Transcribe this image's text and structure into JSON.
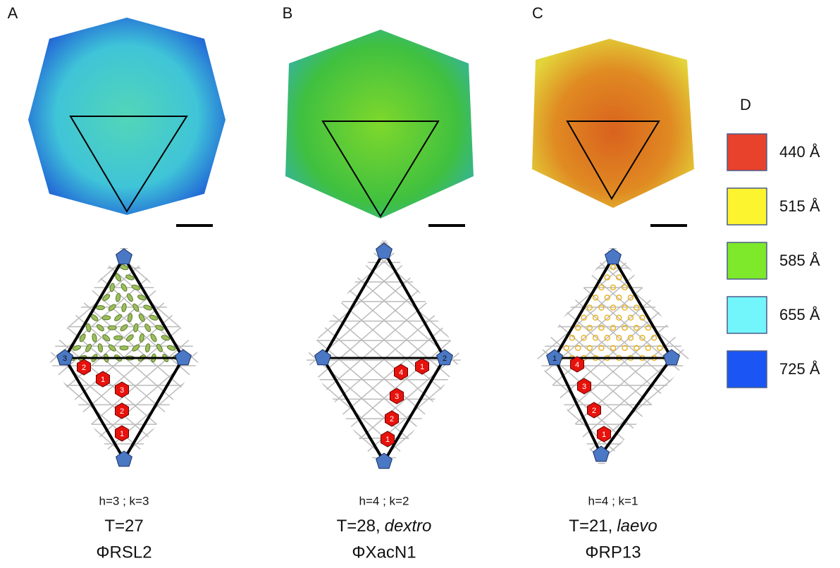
{
  "panels": [
    {
      "label": "A",
      "hk": "h=3 ; k=3",
      "t": "T=27",
      "handedness": null,
      "name": "ΦRSL2",
      "pentagon_label": "3",
      "hex_labels": [
        "2",
        "1",
        "3",
        "2",
        "1"
      ]
    },
    {
      "label": "B",
      "hk": "h=4 ; k=2",
      "t": "T=28,",
      "handedness": "dextro",
      "name": "ΦXacN1",
      "pentagon_label": "2",
      "hex_labels": [
        "1",
        "4",
        "3",
        "2",
        "1"
      ]
    },
    {
      "label": "C",
      "hk": "h=4 ; k=1",
      "t": "T=21,",
      "handedness": "laevo",
      "name": "ΦRP13",
      "pentagon_label": "1",
      "hex_labels": [
        "4",
        "3",
        "2",
        "1"
      ]
    }
  ],
  "legend": {
    "label": "D",
    "items": [
      {
        "label": "440 Å",
        "color": "#e8412c"
      },
      {
        "label": "515 Å",
        "color": "#fcf42f"
      },
      {
        "label": "585 Å",
        "color": "#7ee82a"
      },
      {
        "label": "655 Å",
        "color": "#73f6fb"
      },
      {
        "label": "725 Å",
        "color": "#1b56f5"
      }
    ]
  }
}
